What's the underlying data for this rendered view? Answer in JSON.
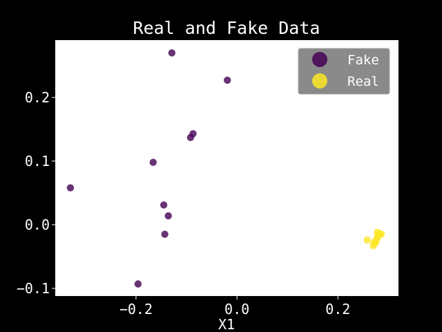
{
  "chart_data": {
    "type": "scatter",
    "title": "Real and Fake Data",
    "xlabel": "X1",
    "ylabel": "",
    "xlim": [
      -0.36,
      0.32
    ],
    "ylim": [
      -0.112,
      0.29
    ],
    "xticks": [
      -0.2,
      0.0,
      0.2
    ],
    "yticks": [
      -0.1,
      0.0,
      0.1,
      0.2
    ],
    "xtick_labels": [
      "−0.2",
      "0.0",
      "0.2"
    ],
    "ytick_labels": [
      "−0.1",
      "0.0",
      "0.1",
      "0.2"
    ],
    "grid": false,
    "legend": "top-right",
    "background": "#000000",
    "plot_background": "#ffffff",
    "series": [
      {
        "name": "Fake",
        "color": "#440154",
        "points": [
          [
            -0.129,
            0.27
          ],
          [
            -0.019,
            0.227
          ],
          [
            -0.087,
            0.143
          ],
          [
            -0.092,
            0.137
          ],
          [
            -0.166,
            0.098
          ],
          [
            -0.33,
            0.058
          ],
          [
            -0.145,
            0.031
          ],
          [
            -0.136,
            0.014
          ],
          [
            -0.143,
            -0.015
          ],
          [
            -0.196,
            -0.093
          ]
        ]
      },
      {
        "name": "Real",
        "color": "#fde725",
        "points": [
          [
            0.258,
            -0.024
          ],
          [
            0.27,
            -0.033
          ],
          [
            0.274,
            -0.029
          ],
          [
            0.276,
            -0.025
          ],
          [
            0.278,
            -0.02
          ],
          [
            0.28,
            -0.017
          ],
          [
            0.283,
            -0.014
          ],
          [
            0.286,
            -0.015
          ],
          [
            0.278,
            -0.012
          ],
          [
            0.272,
            -0.027
          ]
        ]
      }
    ]
  }
}
